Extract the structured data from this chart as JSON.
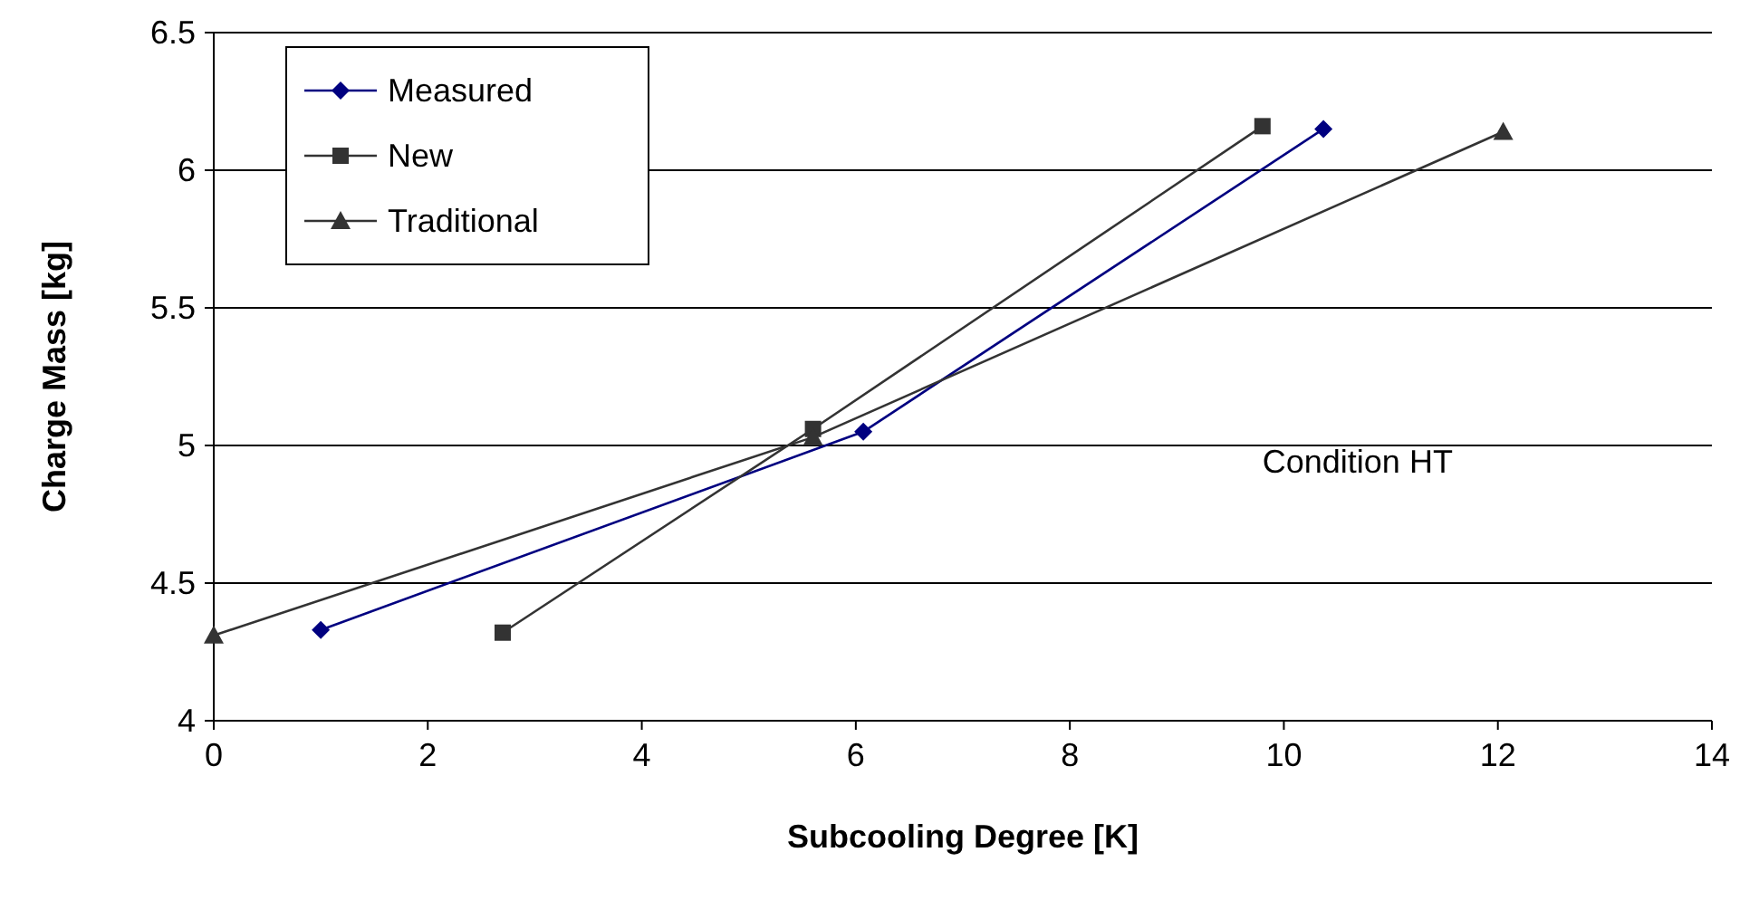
{
  "chart_data": {
    "type": "line",
    "xlabel": "Subcooling Degree [K]",
    "ylabel": "Charge Mass [kg]",
    "xlim": [
      0,
      14
    ],
    "xticks": [
      0,
      2,
      4,
      6,
      8,
      10,
      12,
      14
    ],
    "ylim": [
      4,
      6.5
    ],
    "yticks": [
      4,
      {
        "value": 4.5,
        "label": "4.5"
      },
      5,
      {
        "value": 5.5,
        "label": "5.5"
      },
      6,
      {
        "value": 6.5,
        "label": "6.5"
      }
    ],
    "grid": "y",
    "legend": "top left",
    "line_style": "solid",
    "series": [
      {
        "name": "Measured",
        "color": "#000080",
        "marker": "diamond",
        "x": [
          1.0,
          6.07,
          10.37
        ],
        "values": [
          4.33,
          5.05,
          6.15
        ]
      },
      {
        "name": "New",
        "color": "#333333",
        "marker": "square",
        "x": [
          2.7,
          5.6,
          9.8
        ],
        "values": [
          4.32,
          5.06,
          6.16
        ]
      },
      {
        "name": "Traditional",
        "color": "#333333",
        "marker": "triangle",
        "x": [
          0,
          5.6,
          12.05
        ],
        "values": [
          4.31,
          5.03,
          6.14
        ]
      }
    ],
    "annotations": [
      "Condition HT"
    ]
  }
}
